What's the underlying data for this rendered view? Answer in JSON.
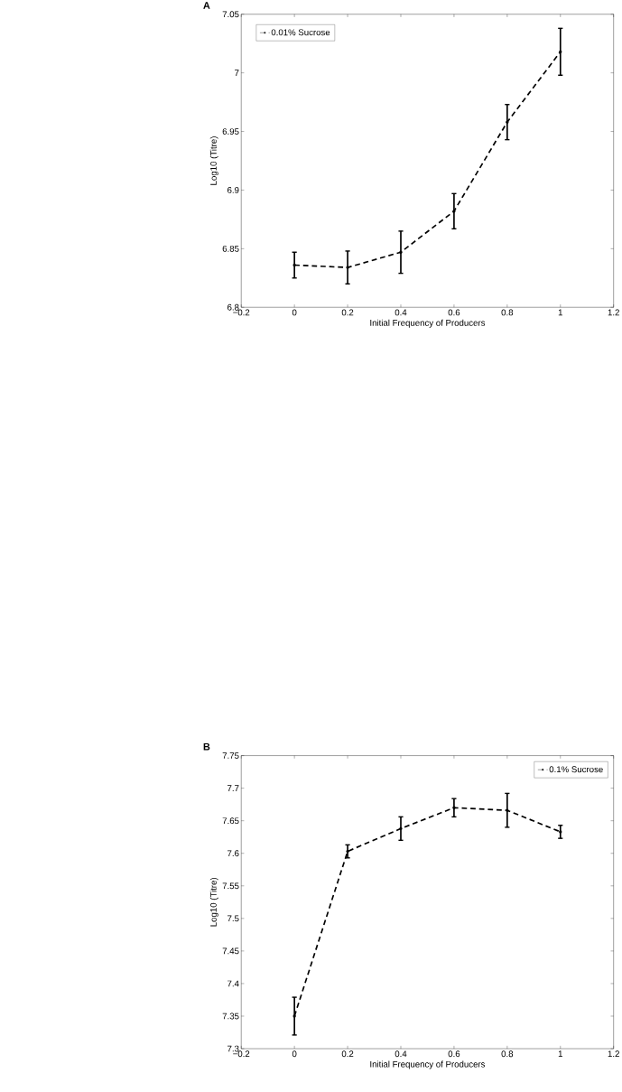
{
  "chart_data": [
    {
      "type": "line",
      "title": "A",
      "xlabel": "Initial Frequency of Producers",
      "ylabel": "Log10 (Titre)",
      "x": [
        0,
        0.2,
        0.4,
        0.6,
        0.8,
        1
      ],
      "series": [
        {
          "name": "0.01% Sucrose",
          "color": "#000000",
          "values": [
            6.836,
            6.834,
            6.847,
            6.882,
            6.958,
            7.018
          ],
          "errors": [
            0.011,
            0.014,
            0.018,
            0.015,
            0.015,
            0.02
          ]
        }
      ],
      "xlim": [
        -0.2,
        1.2
      ],
      "ylim": [
        6.8,
        7.05
      ],
      "xticks": [
        {
          "value": -0.2,
          "label": "−0.2"
        },
        0,
        0.2,
        0.4,
        0.6,
        0.8,
        1,
        1.2
      ],
      "yticks": [
        6.8,
        6.85,
        6.9,
        6.95,
        7,
        7.05
      ],
      "legend": "top left",
      "marker": "circle",
      "line_style": "dashed",
      "grid": false
    },
    {
      "type": "line",
      "title": "B",
      "xlabel": "Initial Frequency of Producers",
      "ylabel": "Log10 (Titre)",
      "x": [
        0,
        0.2,
        0.4,
        0.6,
        0.8,
        1
      ],
      "series": [
        {
          "name": "0.1% Sucrose",
          "color": "#000000",
          "values": [
            7.35,
            7.603,
            7.638,
            7.67,
            7.666,
            7.633
          ],
          "errors": [
            0.029,
            0.01,
            0.018,
            0.014,
            0.026,
            0.01
          ]
        }
      ],
      "xlim": [
        -0.2,
        1.2
      ],
      "ylim": [
        7.3,
        7.75
      ],
      "xticks": [
        {
          "value": -0.2,
          "label": "−0.2"
        },
        0,
        0.2,
        0.4,
        0.6,
        0.8,
        1,
        1.2
      ],
      "yticks": [
        7.3,
        7.35,
        7.4,
        7.45,
        7.5,
        7.55,
        7.6,
        7.65,
        7.7,
        7.75
      ],
      "legend": "top right",
      "marker": "circle",
      "line_style": "dashed",
      "grid": false
    }
  ]
}
